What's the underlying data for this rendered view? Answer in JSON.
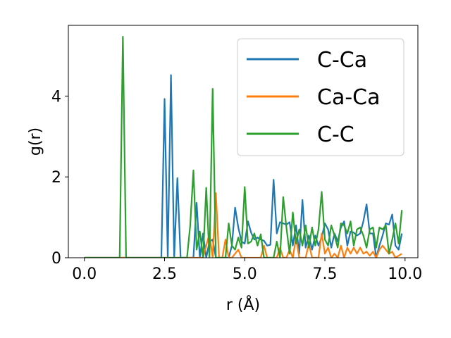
{
  "chart_data": {
    "type": "line",
    "title": "",
    "xlabel": "r (Å)",
    "ylabel": "g(r)",
    "xlim": [
      -0.5,
      10.4
    ],
    "ylim": [
      0,
      5.75
    ],
    "xticks": [
      0.0,
      2.5,
      5.0,
      7.5,
      10.0
    ],
    "xtick_labels": [
      "0.0",
      "2.5",
      "5.0",
      "7.5",
      "10.0"
    ],
    "yticks": [
      0,
      2,
      4
    ],
    "ytick_labels": [
      "0",
      "2",
      "4"
    ],
    "legend_position": "top-right",
    "grid": false,
    "series": [
      {
        "name": "C-Ca",
        "color": "#1f77b4",
        "points": [
          [
            0.0,
            0
          ],
          [
            2.3,
            0
          ],
          [
            2.4,
            0
          ],
          [
            2.5,
            3.93
          ],
          [
            2.6,
            0
          ],
          [
            2.7,
            4.52
          ],
          [
            2.8,
            0
          ],
          [
            2.9,
            1.97
          ],
          [
            3.0,
            0
          ],
          [
            3.4,
            0
          ],
          [
            3.5,
            1.36
          ],
          [
            3.6,
            0
          ],
          [
            3.7,
            0.6
          ],
          [
            3.8,
            0
          ],
          [
            3.9,
            0.4
          ],
          [
            4.0,
            0.45
          ],
          [
            4.1,
            0
          ],
          [
            4.5,
            0
          ],
          [
            4.6,
            0.3
          ],
          [
            4.7,
            1.24
          ],
          [
            4.8,
            0.75
          ],
          [
            4.9,
            0.4
          ],
          [
            5.0,
            0.35
          ],
          [
            5.1,
            0.9
          ],
          [
            5.2,
            0.62
          ],
          [
            5.3,
            0.45
          ],
          [
            5.4,
            0.5
          ],
          [
            5.5,
            0.45
          ],
          [
            5.6,
            0.42
          ],
          [
            5.7,
            0.3
          ],
          [
            5.8,
            0.32
          ],
          [
            5.9,
            1.93
          ],
          [
            6.0,
            0.6
          ],
          [
            6.1,
            0.88
          ],
          [
            6.2,
            0.85
          ],
          [
            6.3,
            0.82
          ],
          [
            6.4,
            0.88
          ],
          [
            6.5,
            0.3
          ],
          [
            6.6,
            0.8
          ],
          [
            6.7,
            0.1
          ],
          [
            6.8,
            1.43
          ],
          [
            6.9,
            0.25
          ],
          [
            7.0,
            0.55
          ],
          [
            7.1,
            0.2
          ],
          [
            7.2,
            0.55
          ],
          [
            7.3,
            0.3
          ],
          [
            7.4,
            0.5
          ],
          [
            7.5,
            0.85
          ],
          [
            7.6,
            0.7
          ],
          [
            7.7,
            0.25
          ],
          [
            7.8,
            0.6
          ],
          [
            7.9,
            0.4
          ],
          [
            8.0,
            0.75
          ],
          [
            8.1,
            0.9
          ],
          [
            8.2,
            0.3
          ],
          [
            8.3,
            0.65
          ],
          [
            8.4,
            0.62
          ],
          [
            8.5,
            0.55
          ],
          [
            8.6,
            0.6
          ],
          [
            8.7,
            0.9
          ],
          [
            8.8,
            1.32
          ],
          [
            8.9,
            0.6
          ],
          [
            9.0,
            0.6
          ],
          [
            9.1,
            0.0
          ],
          [
            9.2,
            0.3
          ],
          [
            9.3,
            0.55
          ],
          [
            9.4,
            0.85
          ],
          [
            9.5,
            0.82
          ],
          [
            9.6,
            1.07
          ],
          [
            9.7,
            0.3
          ],
          [
            9.8,
            0.2
          ],
          [
            9.9,
            0.6
          ]
        ]
      },
      {
        "name": "Ca-Ca",
        "color": "#ff7f0e",
        "points": [
          [
            0.0,
            0
          ],
          [
            3.5,
            0
          ],
          [
            3.7,
            0
          ],
          [
            3.8,
            0.3
          ],
          [
            3.9,
            0.6
          ],
          [
            4.0,
            0
          ],
          [
            4.1,
            1.6
          ],
          [
            4.2,
            0
          ],
          [
            4.3,
            0
          ],
          [
            4.4,
            0.45
          ],
          [
            4.5,
            0
          ],
          [
            4.6,
            0
          ],
          [
            4.7,
            0.1
          ],
          [
            4.8,
            0.2
          ],
          [
            4.9,
            0
          ],
          [
            5.5,
            0
          ],
          [
            5.6,
            0.3
          ],
          [
            5.7,
            0
          ],
          [
            6.0,
            0
          ],
          [
            6.1,
            0.25
          ],
          [
            6.2,
            0
          ],
          [
            6.3,
            0
          ],
          [
            6.4,
            0.2
          ],
          [
            6.5,
            0
          ],
          [
            6.6,
            0.5
          ],
          [
            6.7,
            0
          ],
          [
            6.9,
            0
          ],
          [
            7.0,
            0.35
          ],
          [
            7.1,
            0
          ],
          [
            7.3,
            0
          ],
          [
            7.4,
            0.6
          ],
          [
            7.5,
            0.1
          ],
          [
            7.6,
            0.25
          ],
          [
            7.7,
            0
          ],
          [
            7.8,
            0.1
          ],
          [
            7.9,
            0
          ],
          [
            8.0,
            0.3
          ],
          [
            8.1,
            0
          ],
          [
            8.2,
            0.25
          ],
          [
            8.3,
            0.1
          ],
          [
            8.4,
            0.25
          ],
          [
            8.5,
            0.1
          ],
          [
            8.6,
            0.25
          ],
          [
            8.7,
            0.1
          ],
          [
            8.8,
            0.15
          ],
          [
            8.9,
            0.05
          ],
          [
            9.0,
            0.15
          ],
          [
            9.1,
            0
          ],
          [
            9.2,
            0.2
          ],
          [
            9.3,
            0.3
          ],
          [
            9.4,
            0.2
          ],
          [
            9.5,
            0.1
          ],
          [
            9.6,
            0.15
          ],
          [
            9.7,
            0
          ],
          [
            9.8,
            0.05
          ],
          [
            9.9,
            0.1
          ]
        ]
      },
      {
        "name": "C-C",
        "color": "#2ca02c",
        "points": [
          [
            0.0,
            0
          ],
          [
            1.1,
            0
          ],
          [
            1.2,
            5.47
          ],
          [
            1.3,
            0
          ],
          [
            3.1,
            0
          ],
          [
            3.2,
            0
          ],
          [
            3.3,
            0.8
          ],
          [
            3.4,
            2.16
          ],
          [
            3.5,
            0.2
          ],
          [
            3.6,
            0.65
          ],
          [
            3.7,
            0
          ],
          [
            3.8,
            1.73
          ],
          [
            3.9,
            0
          ],
          [
            4.0,
            4.18
          ],
          [
            4.1,
            0
          ],
          [
            4.4,
            0
          ],
          [
            4.5,
            0.85
          ],
          [
            4.6,
            0.3
          ],
          [
            4.7,
            0.2
          ],
          [
            4.8,
            0.5
          ],
          [
            4.9,
            0.25
          ],
          [
            5.0,
            1.75
          ],
          [
            5.1,
            0.35
          ],
          [
            5.2,
            0.4
          ],
          [
            5.3,
            0.6
          ],
          [
            5.4,
            0.3
          ],
          [
            5.5,
            0.58
          ],
          [
            5.6,
            0
          ],
          [
            5.9,
            0
          ],
          [
            6.0,
            0.4
          ],
          [
            6.1,
            0
          ],
          [
            6.2,
            1.5
          ],
          [
            6.3,
            0.75
          ],
          [
            6.4,
            0.1
          ],
          [
            6.5,
            1.12
          ],
          [
            6.6,
            0.35
          ],
          [
            6.7,
            0.7
          ],
          [
            6.8,
            0.3
          ],
          [
            6.9,
            0.8
          ],
          [
            7.0,
            0.25
          ],
          [
            7.1,
            0.75
          ],
          [
            7.2,
            0.3
          ],
          [
            7.3,
            0.7
          ],
          [
            7.4,
            1.63
          ],
          [
            7.5,
            0.45
          ],
          [
            7.6,
            0.3
          ],
          [
            7.7,
            0.8
          ],
          [
            7.8,
            0.55
          ],
          [
            7.9,
            0.25
          ],
          [
            8.0,
            0.85
          ],
          [
            8.1,
            0.8
          ],
          [
            8.2,
            0.6
          ],
          [
            8.3,
            0.9
          ],
          [
            8.4,
            0.3
          ],
          [
            8.5,
            0.7
          ],
          [
            8.6,
            0.75
          ],
          [
            8.7,
            0.55
          ],
          [
            8.8,
            0.25
          ],
          [
            8.9,
            0.7
          ],
          [
            9.0,
            0.75
          ],
          [
            9.1,
            0.25
          ],
          [
            9.2,
            0.75
          ],
          [
            9.3,
            0.7
          ],
          [
            9.4,
            0.8
          ],
          [
            9.5,
            0.1
          ],
          [
            9.6,
            0.45
          ],
          [
            9.7,
            0.85
          ],
          [
            9.8,
            0.35
          ],
          [
            9.9,
            1.18
          ]
        ]
      }
    ]
  }
}
